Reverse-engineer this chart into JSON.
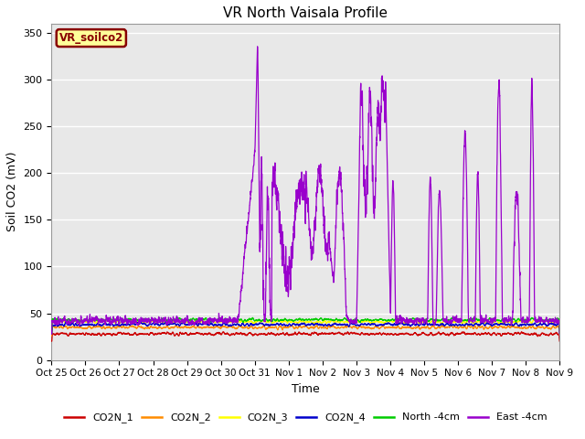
{
  "title": "VR North Vaisala Profile",
  "xlabel": "Time",
  "ylabel": "Soil CO2 (mV)",
  "annotation": "VR_soilco2",
  "ylim": [
    0,
    360
  ],
  "yticks": [
    0,
    50,
    100,
    150,
    200,
    250,
    300,
    350
  ],
  "xtick_labels": [
    "Oct 25",
    "Oct 26",
    "Oct 27",
    "Oct 28",
    "Oct 29",
    "Oct 30",
    "Oct 31",
    "Nov 1",
    "Nov 2",
    "Nov 3",
    "Nov 4",
    "Nov 5",
    "Nov 6",
    "Nov 7",
    "Nov 8",
    "Nov 9"
  ],
  "line_colors": {
    "CO2N_1": "#cc0000",
    "CO2N_2": "#ff8c00",
    "CO2N_3": "#ffff00",
    "CO2N_4": "#0000cc",
    "North_4cm": "#00cc00",
    "East_4cm": "#9900cc"
  },
  "legend_labels": [
    "CO2N_1",
    "CO2N_2",
    "CO2N_3",
    "CO2N_4",
    "North -4cm",
    "East -4cm"
  ],
  "background_color": "#e8e8e8",
  "grid_color": "#ffffff",
  "annotation_bg": "#ffff99",
  "annotation_border": "#880000"
}
